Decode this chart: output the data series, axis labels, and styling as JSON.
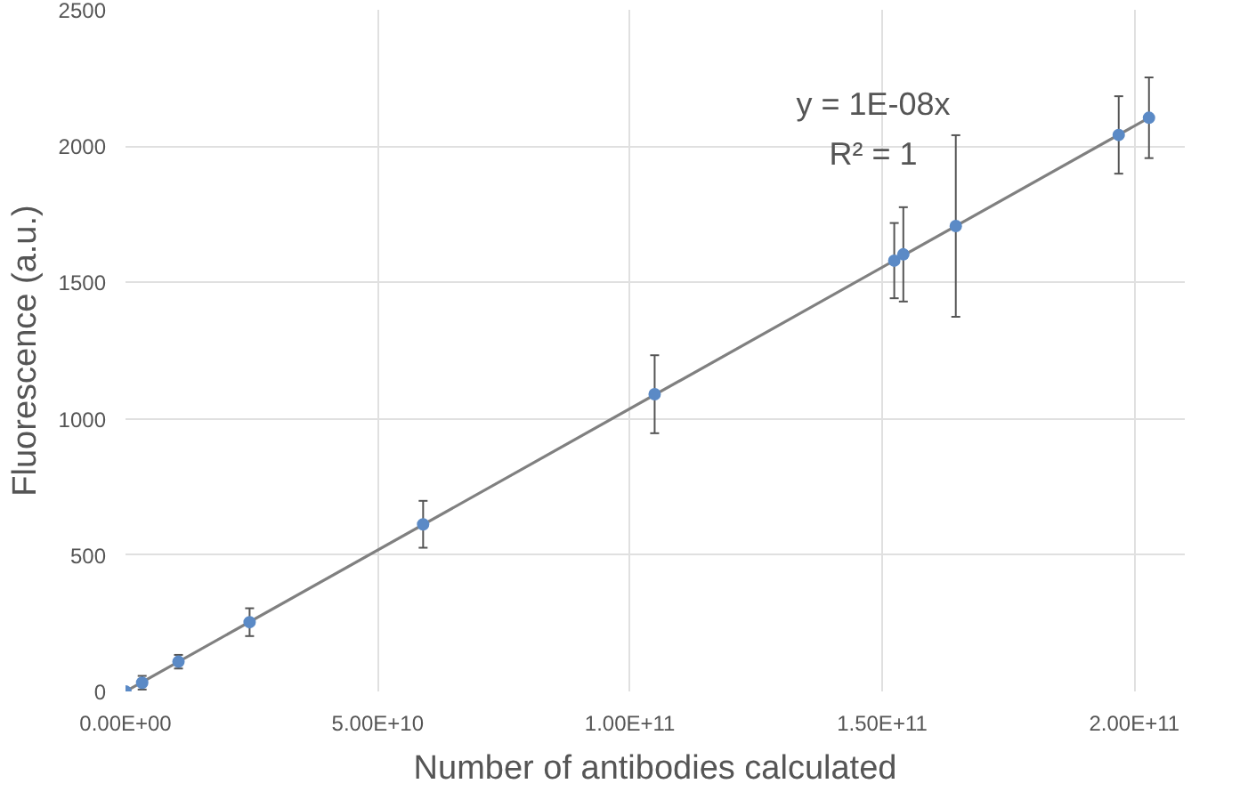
{
  "chart_data": {
    "type": "scatter",
    "xlabel": "Number of antibodies calculated",
    "ylabel": "Fluorescence (a.u.)",
    "x": [
      0,
      3300000000.0,
      10500000000.0,
      24600000000.0,
      59000000000.0,
      104900000000.0,
      152400000000.0,
      154200000000.0,
      164600000000.0,
      196900000000.0,
      202900000000.0
    ],
    "series": [
      {
        "color": "#5b8ac6",
        "values": [
          0,
          32,
          109,
          254,
          613,
          1090,
          1580,
          1603,
          1707,
          2041,
          2104
        ],
        "errors": [
          null,
          25,
          25,
          51,
          86,
          143,
          138,
          173,
          333,
          142,
          148
        ],
        "marker": "circle"
      },
      {
        "type": "line",
        "color": "#808080",
        "x": [
          0,
          202900000000.0
        ],
        "values": [
          0,
          2104
        ],
        "marker": "none"
      }
    ],
    "xlim": [
      0,
      210000000000.0
    ],
    "ylim": [
      0,
      2500
    ],
    "xticks": [
      {
        "value": 0,
        "label": "0.00E+00"
      },
      {
        "value": 50000000000.0,
        "label": "5.00E+10"
      },
      {
        "value": 100000000000.0,
        "label": "1.00E+11"
      },
      {
        "value": 150000000000.0,
        "label": "1.50E+11"
      },
      {
        "value": 200000000000.0,
        "label": "2.00E+11"
      }
    ],
    "yticks": [
      0,
      500,
      1000,
      1500,
      2000,
      2500
    ],
    "annotations": [
      "y = 1E-08x",
      "R² = 1"
    ],
    "grid": true
  }
}
